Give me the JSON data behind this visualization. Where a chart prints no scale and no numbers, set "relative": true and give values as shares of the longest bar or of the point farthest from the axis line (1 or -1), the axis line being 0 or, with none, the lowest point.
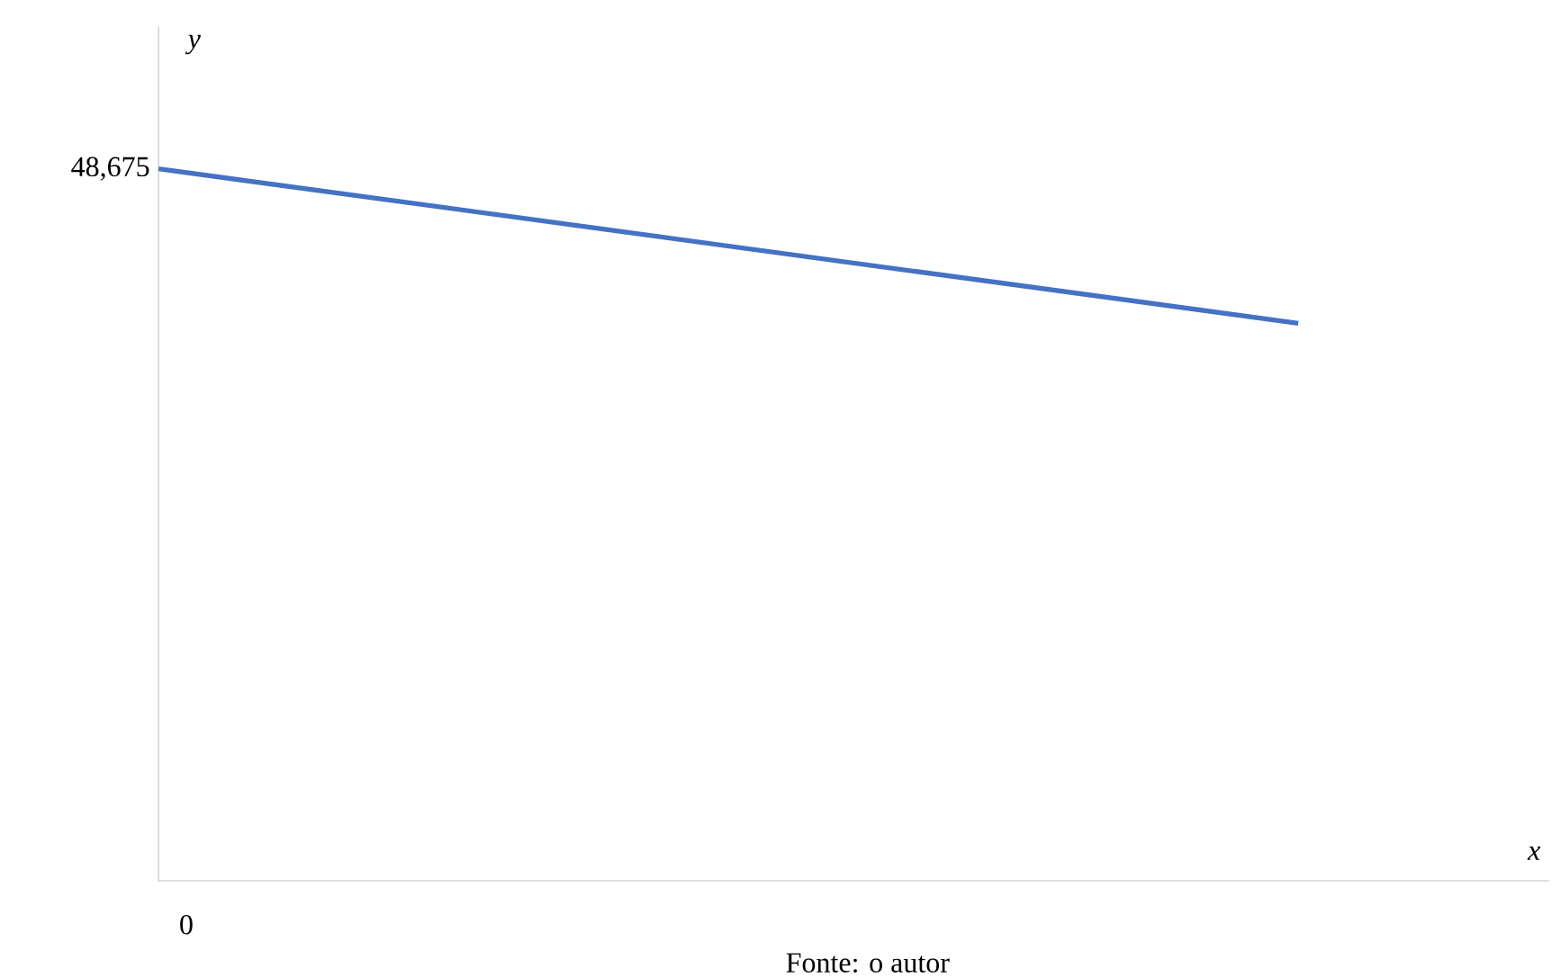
{
  "chart_data": {
    "type": "line",
    "relative": true,
    "xlabel": "x",
    "ylabel": "y",
    "categories": [
      null,
      null
    ],
    "series": [
      {
        "color": "#4472c4",
        "values": [
          1,
          0.783
        ]
      }
    ],
    "annotations": [
      "48,675",
      "0",
      "Fonte: o autor"
    ]
  }
}
